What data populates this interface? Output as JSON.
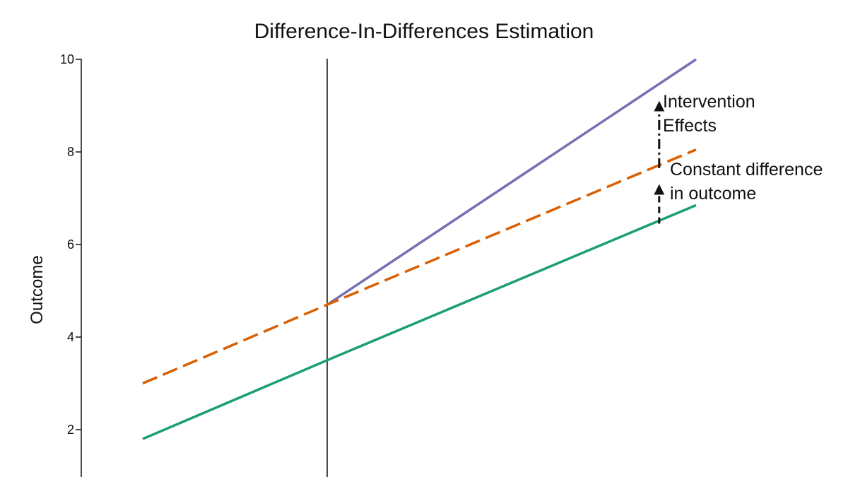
{
  "chart_data": {
    "type": "line",
    "title": "Difference-In-Differences Estimation",
    "xlabel": "",
    "ylabel": "Outcome",
    "xlim": [
      0,
      10
    ],
    "ylim": [
      1,
      10
    ],
    "yticks": [
      2,
      4,
      6,
      8,
      10
    ],
    "grid": false,
    "legend": "none",
    "intervention_x": 3.0,
    "series": [
      {
        "style": "solid",
        "color": "#7570b3",
        "x": [
          3.0,
          9.0
        ],
        "y": [
          4.7,
          10.0
        ]
      },
      {
        "style": "dashed",
        "color": "#d95f02",
        "x": [
          0.0,
          3.0,
          9.0
        ],
        "y": [
          3.0,
          4.7,
          8.05
        ]
      },
      {
        "style": "solid",
        "color": "#1b9e77",
        "x": [
          0.0,
          3.0,
          9.0
        ],
        "y": [
          1.8,
          3.5,
          6.85
        ]
      }
    ],
    "annotations": [
      {
        "lines": [
          "Intervention",
          "Effects"
        ],
        "x": 8.4,
        "y_from": 7.65,
        "y_to": 9.05,
        "style": "dashdot"
      },
      {
        "lines": [
          "Constant difference",
          "in outcome"
        ],
        "x": 8.4,
        "y_from": 6.45,
        "y_to": 7.25,
        "style": "dashed"
      }
    ]
  }
}
